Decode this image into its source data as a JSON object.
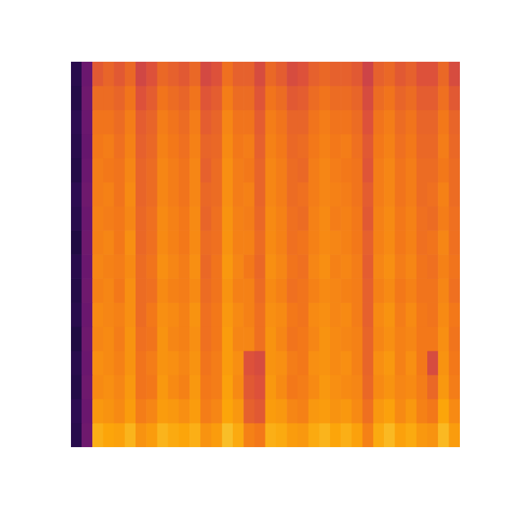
{
  "chart_data": {
    "type": "heatmap",
    "color": "inferno",
    "color_range": [
      0,
      100
    ],
    "tick_labels": false,
    "grid": false,
    "cells": [
      [
        14,
        30,
        62,
        65,
        62,
        66,
        56,
        60,
        66,
        64,
        62,
        66,
        57,
        60,
        68,
        64,
        64,
        58,
        66,
        63,
        58,
        60,
        64,
        66,
        64,
        64,
        62,
        55,
        64,
        66,
        62,
        64,
        60,
        60,
        66,
        58
      ],
      [
        13,
        31,
        67,
        67,
        65,
        69,
        60,
        63,
        69,
        67,
        65,
        69,
        61,
        63,
        71,
        67,
        67,
        61,
        69,
        67,
        62,
        63,
        67,
        69,
        67,
        67,
        65,
        58,
        67,
        69,
        65,
        67,
        63,
        63,
        68,
        62
      ],
      [
        15,
        30,
        69,
        69,
        67,
        71,
        63,
        65,
        71,
        69,
        67,
        71,
        63,
        65,
        73,
        69,
        69,
        63,
        71,
        69,
        65,
        65,
        69,
        71,
        69,
        69,
        67,
        60,
        69,
        71,
        67,
        69,
        65,
        65,
        70,
        65
      ],
      [
        14,
        29,
        70,
        71,
        68,
        72,
        64,
        66,
        72,
        70,
        68,
        72,
        65,
        66,
        74,
        70,
        71,
        64,
        72,
        70,
        66,
        67,
        70,
        72,
        70,
        71,
        68,
        62,
        70,
        72,
        68,
        70,
        66,
        66,
        71,
        66
      ],
      [
        13,
        30,
        71,
        70,
        69,
        73,
        65,
        67,
        73,
        71,
        69,
        73,
        64,
        67,
        75,
        71,
        70,
        65,
        73,
        71,
        67,
        66,
        71,
        73,
        71,
        70,
        69,
        61,
        71,
        73,
        69,
        71,
        67,
        67,
        70,
        67
      ],
      [
        15,
        31,
        71,
        72,
        69,
        74,
        65,
        67,
        73,
        71,
        69,
        73,
        66,
        67,
        75,
        71,
        72,
        65,
        73,
        71,
        67,
        68,
        71,
        73,
        72,
        71,
        69,
        63,
        71,
        73,
        69,
        71,
        67,
        68,
        72,
        67
      ],
      [
        14,
        30,
        72,
        71,
        70,
        73,
        66,
        68,
        74,
        72,
        70,
        74,
        65,
        68,
        76,
        72,
        71,
        66,
        74,
        72,
        68,
        67,
        72,
        74,
        71,
        72,
        70,
        62,
        72,
        74,
        70,
        72,
        68,
        67,
        71,
        68
      ],
      [
        12,
        31,
        72,
        73,
        70,
        75,
        66,
        68,
        74,
        72,
        70,
        74,
        67,
        68,
        76,
        72,
        72,
        67,
        74,
        72,
        68,
        69,
        72,
        74,
        73,
        72,
        70,
        64,
        72,
        74,
        70,
        72,
        68,
        69,
        73,
        68
      ],
      [
        14,
        30,
        73,
        72,
        71,
        74,
        67,
        69,
        75,
        73,
        71,
        75,
        66,
        69,
        77,
        73,
        70,
        66,
        75,
        73,
        69,
        68,
        73,
        75,
        72,
        73,
        71,
        63,
        73,
        75,
        71,
        73,
        69,
        68,
        72,
        69
      ],
      [
        13,
        31,
        72,
        73,
        70,
        75,
        67,
        68,
        74,
        72,
        71,
        74,
        67,
        69,
        76,
        72,
        72,
        67,
        74,
        72,
        68,
        69,
        72,
        74,
        73,
        72,
        71,
        64,
        72,
        74,
        70,
        72,
        69,
        69,
        73,
        68
      ],
      [
        14,
        30,
        74,
        73,
        72,
        75,
        67,
        70,
        75,
        74,
        72,
        76,
        68,
        70,
        77,
        74,
        72,
        68,
        75,
        74,
        70,
        69,
        74,
        75,
        73,
        74,
        71,
        64,
        74,
        76,
        71,
        74,
        70,
        69,
        74,
        70
      ],
      [
        12,
        31,
        73,
        74,
        71,
        76,
        68,
        69,
        76,
        73,
        72,
        75,
        68,
        70,
        78,
        73,
        73,
        68,
        76,
        73,
        69,
        70,
        73,
        76,
        74,
        73,
        72,
        65,
        73,
        75,
        72,
        73,
        70,
        70,
        75,
        69
      ],
      [
        14,
        30,
        75,
        74,
        72,
        76,
        69,
        71,
        76,
        75,
        73,
        76,
        69,
        71,
        78,
        75,
        60,
        58,
        76,
        75,
        71,
        70,
        75,
        76,
        74,
        75,
        72,
        65,
        75,
        77,
        72,
        75,
        70,
        58,
        76,
        70
      ],
      [
        13,
        31,
        74,
        75,
        73,
        77,
        69,
        70,
        77,
        74,
        72,
        77,
        70,
        71,
        79,
        74,
        62,
        60,
        77,
        74,
        70,
        71,
        74,
        77,
        75,
        74,
        73,
        66,
        74,
        76,
        73,
        74,
        71,
        66,
        77,
        71
      ],
      [
        15,
        30,
        77,
        76,
        74,
        78,
        71,
        73,
        78,
        77,
        75,
        78,
        71,
        73,
        80,
        77,
        64,
        62,
        78,
        77,
        73,
        72,
        77,
        78,
        76,
        77,
        74,
        68,
        77,
        79,
        74,
        77,
        72,
        70,
        80,
        74
      ],
      [
        14,
        31,
        82,
        80,
        79,
        83,
        76,
        78,
        83,
        81,
        80,
        82,
        76,
        78,
        85,
        81,
        72,
        70,
        82,
        81,
        78,
        77,
        81,
        83,
        80,
        82,
        79,
        72,
        81,
        84,
        79,
        81,
        77,
        76,
        84,
        78
      ]
    ]
  }
}
